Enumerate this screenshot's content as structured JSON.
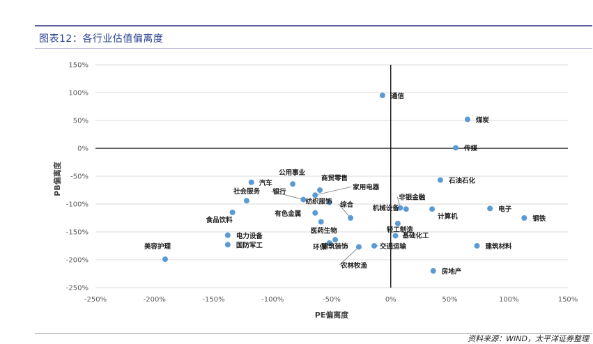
{
  "figure": {
    "title": "图表12：各行业估值偏离度",
    "source": "资料来源：WIND，太平洋证券整理"
  },
  "chart_data": {
    "type": "scatter",
    "title": "",
    "xlabel": "PE偏离度",
    "ylabel": "PB偏离度",
    "xlim": [
      -250,
      150
    ],
    "ylim": [
      -250,
      150
    ],
    "x_ticks": [
      "-250%",
      "-200%",
      "-150%",
      "-100%",
      "-50%",
      "0%",
      "50%",
      "100%",
      "150%"
    ],
    "y_ticks": [
      "150%",
      "100%",
      "50%",
      "0%",
      "-50%",
      "-100%",
      "-150%",
      "-200%",
      "-250%"
    ],
    "grid": "horizontal",
    "point_color": "#5b9bd5",
    "points": [
      {
        "label": "通信",
        "x": -7,
        "y": 95
      },
      {
        "label": "煤炭",
        "x": 65,
        "y": 52
      },
      {
        "label": "传媒",
        "x": 55,
        "y": 1
      },
      {
        "label": "石油石化",
        "x": 42,
        "y": -57
      },
      {
        "label": "公用事业",
        "x": -83,
        "y": -64
      },
      {
        "label": "商贸零售",
        "x": -60,
        "y": -75
      },
      {
        "label": "汽车",
        "x": -118,
        "y": -61
      },
      {
        "label": "家用电器",
        "x": -64,
        "y": -84
      },
      {
        "label": "社会服务",
        "x": -122,
        "y": -94
      },
      {
        "label": "银行",
        "x": -74,
        "y": -92
      },
      {
        "label": "纺织服饰",
        "x": -52,
        "y": -97
      },
      {
        "label": "有色金属",
        "x": -64,
        "y": -116
      },
      {
        "label": "综合",
        "x": -34,
        "y": -125
      },
      {
        "label": "非银金融",
        "x": 8,
        "y": -107
      },
      {
        "label": "机械设备",
        "x": 13,
        "y": -109
      },
      {
        "label": "计算机",
        "x": 35,
        "y": -109
      },
      {
        "label": "电子",
        "x": 84,
        "y": -108
      },
      {
        "label": "钢铁",
        "x": 113,
        "y": -125
      },
      {
        "label": "食品饮料",
        "x": -134,
        "y": -115
      },
      {
        "label": "医药生物",
        "x": -59,
        "y": -132
      },
      {
        "label": "轻工制造",
        "x": 6,
        "y": -135
      },
      {
        "label": "电力设备",
        "x": -138,
        "y": -156
      },
      {
        "label": "基础化工",
        "x": 4,
        "y": -157
      },
      {
        "label": "国防军工",
        "x": -138,
        "y": -173
      },
      {
        "label": "环保",
        "x": -47,
        "y": -164
      },
      {
        "label": "建筑装饰",
        "x": -52,
        "y": -170
      },
      {
        "label": "交通运输",
        "x": -14,
        "y": -175
      },
      {
        "label": "农林牧渔",
        "x": -27,
        "y": -177
      },
      {
        "label": "建筑材料",
        "x": 73,
        "y": -175
      },
      {
        "label": "美容护理",
        "x": -191,
        "y": -199
      },
      {
        "label": "房地产",
        "x": 36,
        "y": -220
      }
    ]
  }
}
